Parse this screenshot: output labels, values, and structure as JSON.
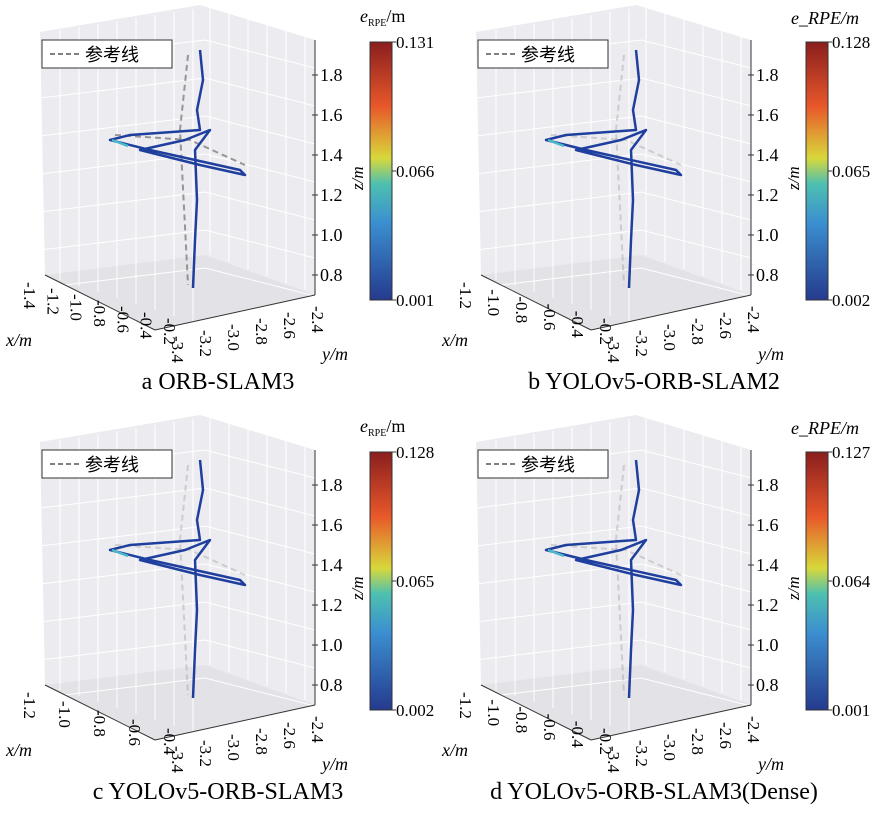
{
  "legend_label": "参考线",
  "colorbar_title": "e_RPE/m",
  "colorbar_title_main": "e",
  "colorbar_title_sub": "RPE",
  "colorbar_title_unit": "/m",
  "colormap": "jet",
  "reference_line_color": "#808080",
  "chart_data": [
    {
      "type": "3d-line",
      "caption": "a ORB-SLAM3",
      "xlabel": "x/m",
      "ylabel": "y/m",
      "zlabel": "z/m",
      "xticks": [
        "-1.4",
        "-1.2",
        "-1.0",
        "-0.8",
        "-0.6",
        "-0.4",
        "-0.2"
      ],
      "yticks": [
        "-3.4",
        "-3.2",
        "-3.0",
        "-2.8",
        "-2.6",
        "-2.4"
      ],
      "zticks": [
        "0.8",
        "1.0",
        "1.2",
        "1.4",
        "1.6",
        "1.8"
      ],
      "colorbar_ticks": [
        "0.001",
        "0.066",
        "0.131"
      ],
      "colorbar_range": [
        0.001,
        0.131
      ]
    },
    {
      "type": "3d-line",
      "caption": "b YOLOv5-ORB-SLAM2",
      "xlabel": "x/m",
      "ylabel": "y/m",
      "zlabel": "z/m",
      "xticks": [
        "-1.2",
        "-1.0",
        "-0.8",
        "-0.6",
        "-0.4",
        "-0.2"
      ],
      "yticks": [
        "-3.4",
        "-3.2",
        "-3.0",
        "-2.8",
        "-2.6",
        "-2.4"
      ],
      "zticks": [
        "0.8",
        "1.0",
        "1.2",
        "1.4",
        "1.6",
        "1.8"
      ],
      "colorbar_ticks": [
        "0.002",
        "0.065",
        "0.128"
      ],
      "colorbar_range": [
        0.002,
        0.128
      ]
    },
    {
      "type": "3d-line",
      "caption": "c YOLOv5-ORB-SLAM3",
      "xlabel": "x/m",
      "ylabel": "y/m",
      "zlabel": "z/m",
      "xticks": [
        "-1.2",
        "-1.0",
        "-0.8",
        "-0.6",
        "-0.4"
      ],
      "yticks": [
        "-3.4",
        "-3.2",
        "-3.0",
        "-2.8",
        "-2.6",
        "-2.4"
      ],
      "zticks": [
        "0.8",
        "1.0",
        "1.2",
        "1.4",
        "1.6",
        "1.8"
      ],
      "colorbar_ticks": [
        "0.002",
        "0.065",
        "0.128"
      ],
      "colorbar_range": [
        0.002,
        0.128
      ]
    },
    {
      "type": "3d-line",
      "caption": "d YOLOv5-ORB-SLAM3(Dense)",
      "xlabel": "x/m",
      "ylabel": "y/m",
      "zlabel": "z/m",
      "xticks": [
        "-1.2",
        "-1.0",
        "-0.8",
        "-0.6",
        "-0.4",
        "-0.2"
      ],
      "yticks": [
        "-3.4",
        "-3.2",
        "-3.0",
        "-2.8",
        "-2.6",
        "-2.4"
      ],
      "zticks": [
        "0.8",
        "1.0",
        "1.2",
        "1.4",
        "1.6",
        "1.8"
      ],
      "colorbar_ticks": [
        "0.001",
        "0.064",
        "0.127"
      ],
      "colorbar_range": [
        0.001,
        0.127
      ]
    }
  ]
}
